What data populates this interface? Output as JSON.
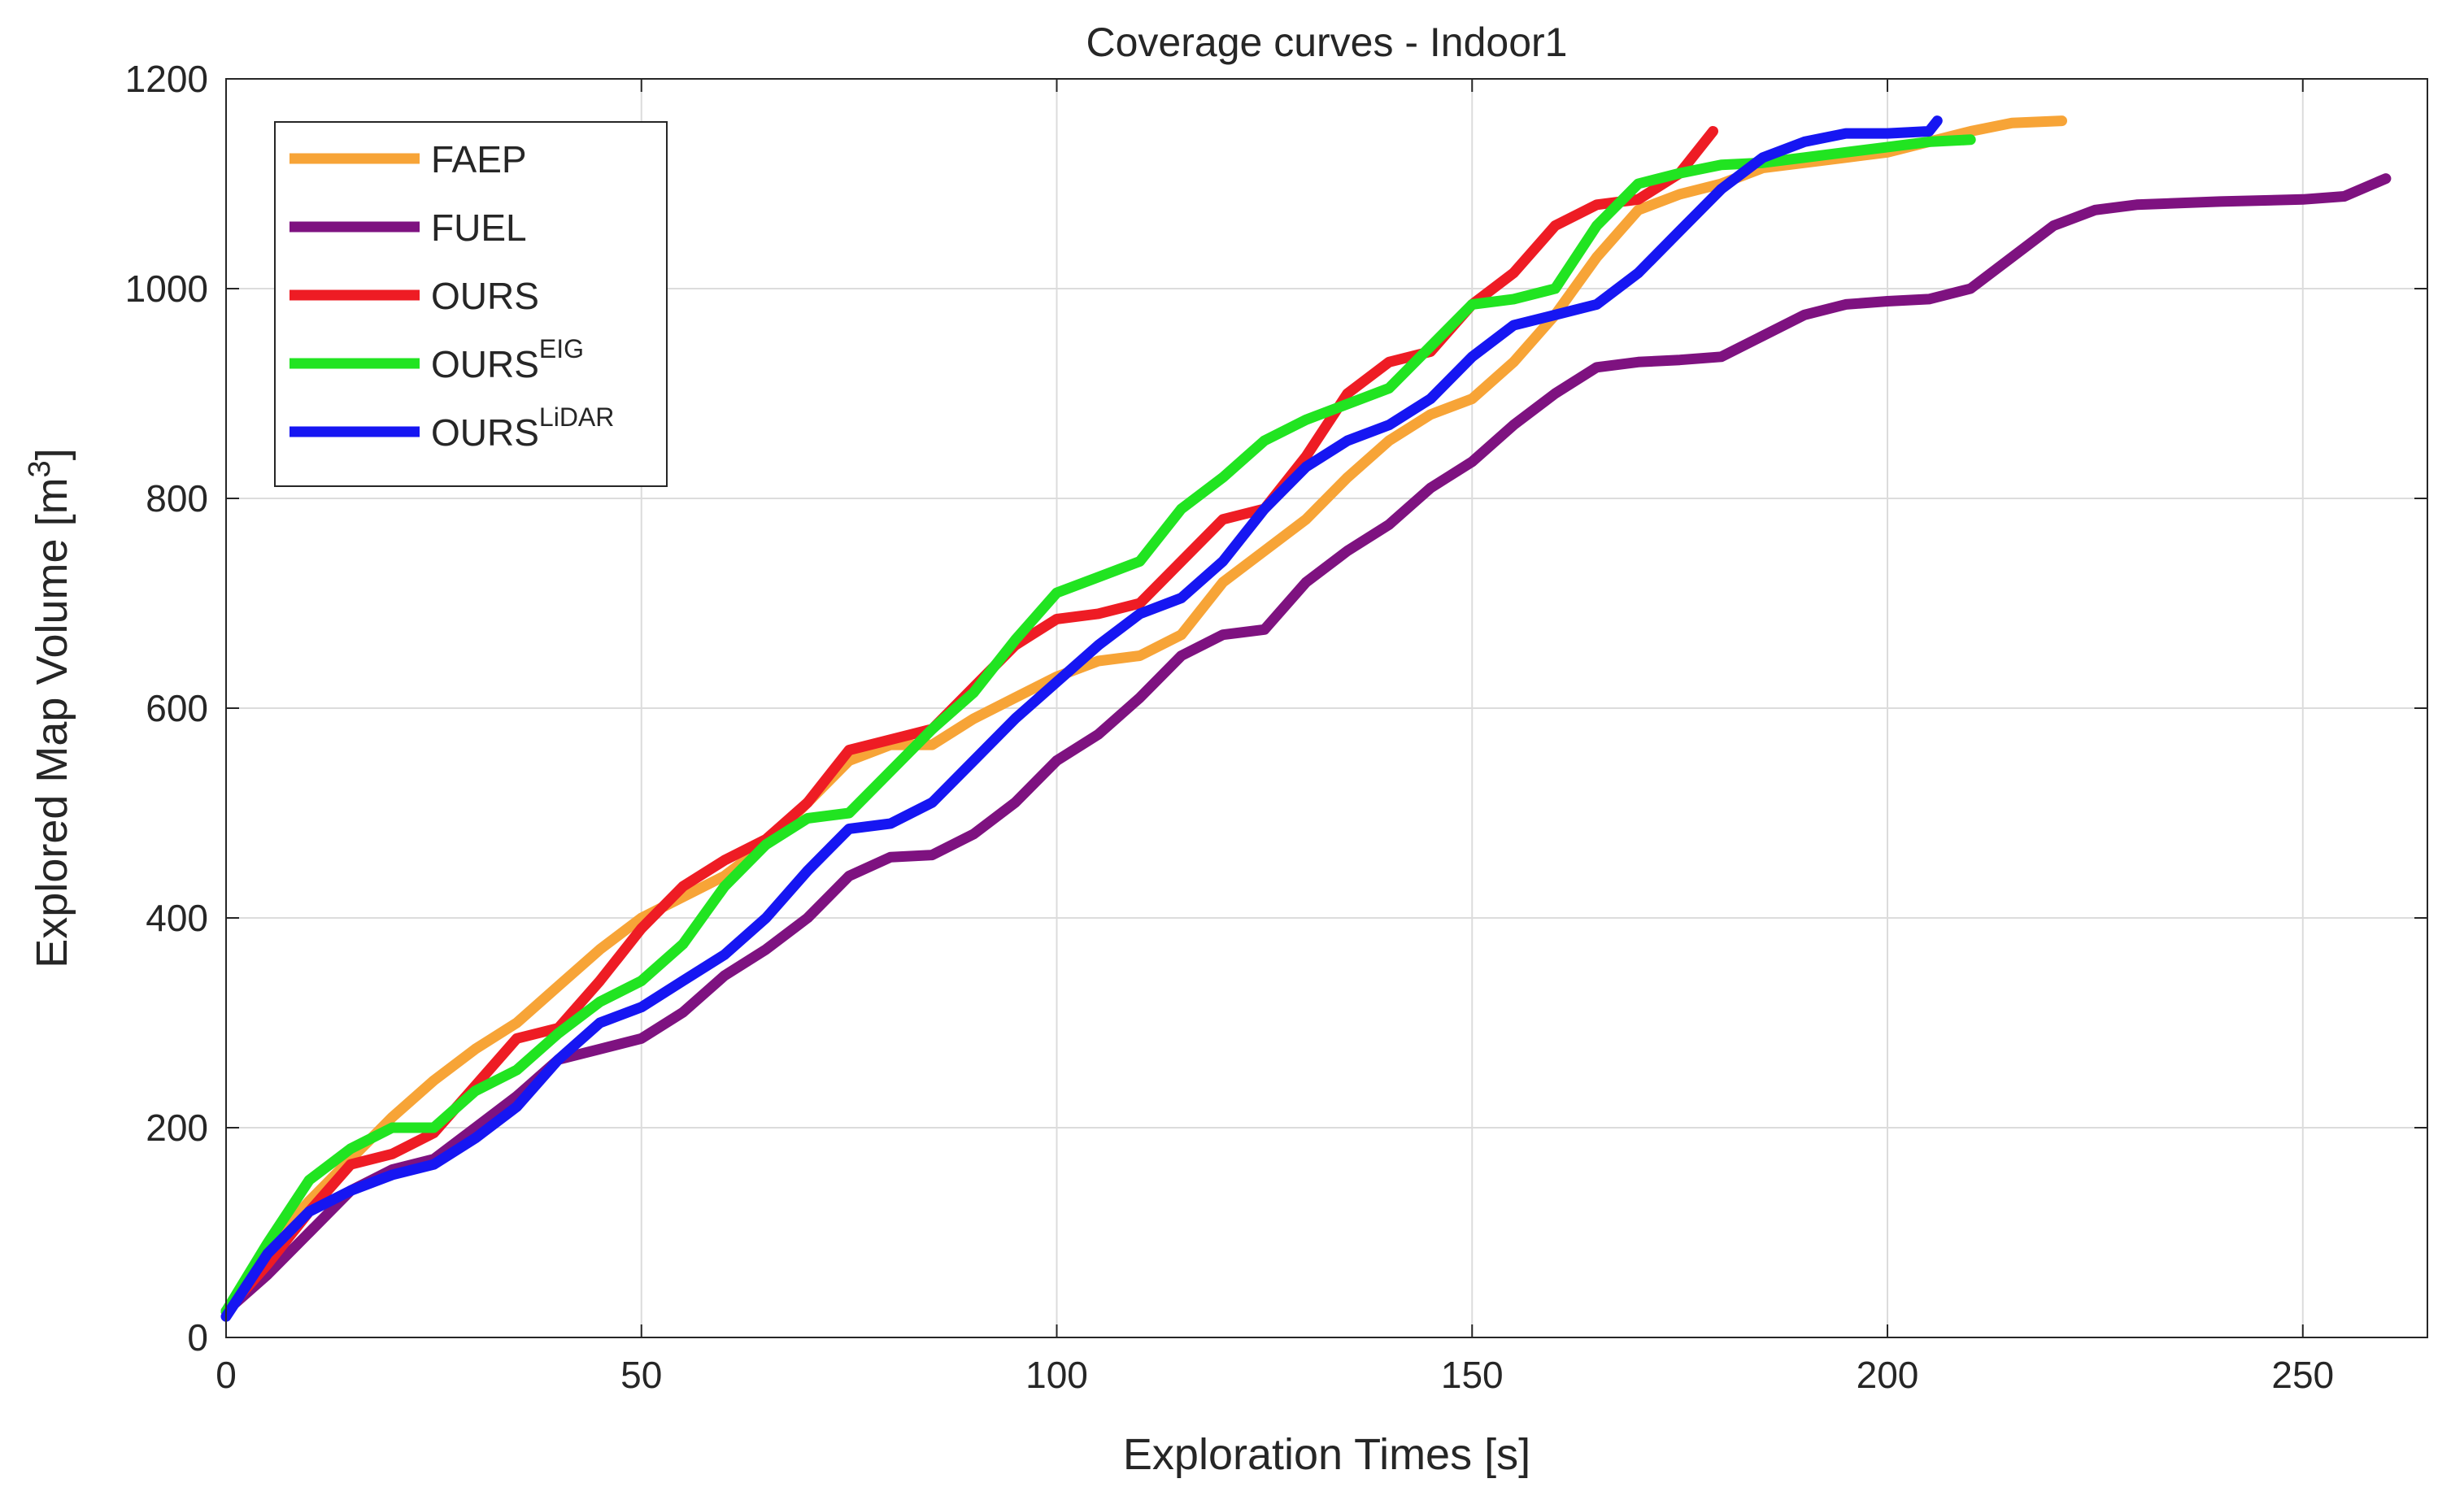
{
  "chart_data": {
    "type": "line",
    "title": "Coverage curves - Indoor1",
    "xlabel": "Exploration Times [s]",
    "ylabel": "Explored Map Volume [m",
    "ylabel_superscript": "3",
    "ylabel_close": "]",
    "xlim": [
      0,
      265
    ],
    "ylim": [
      0,
      1200
    ],
    "xticks": [
      0,
      50,
      100,
      150,
      200,
      250
    ],
    "yticks": [
      0,
      200,
      400,
      600,
      800,
      1000,
      1200
    ],
    "grid": true,
    "legend_position": "top-left",
    "series": [
      {
        "name": "FAEP",
        "superscript": "",
        "color": "#f7a437",
        "x": [
          0,
          5,
          10,
          15,
          20,
          25,
          30,
          35,
          40,
          45,
          50,
          55,
          60,
          65,
          70,
          75,
          80,
          85,
          90,
          95,
          100,
          105,
          110,
          115,
          120,
          125,
          130,
          135,
          140,
          145,
          150,
          155,
          160,
          165,
          170,
          175,
          180,
          185,
          190,
          195,
          200,
          205,
          210,
          215,
          221
        ],
        "y": [
          25,
          85,
          130,
          170,
          210,
          245,
          275,
          300,
          335,
          370,
          400,
          420,
          440,
          470,
          510,
          550,
          565,
          565,
          590,
          610,
          630,
          645,
          650,
          670,
          720,
          750,
          780,
          820,
          855,
          880,
          895,
          930,
          975,
          1030,
          1075,
          1090,
          1100,
          1115,
          1120,
          1125,
          1130,
          1140,
          1150,
          1158,
          1160
        ]
      },
      {
        "name": "FUEL",
        "superscript": "",
        "color": "#7e1280",
        "x": [
          0,
          5,
          10,
          15,
          20,
          25,
          30,
          35,
          40,
          45,
          50,
          55,
          60,
          65,
          70,
          75,
          80,
          85,
          90,
          95,
          100,
          105,
          110,
          115,
          120,
          125,
          130,
          135,
          140,
          145,
          150,
          155,
          160,
          165,
          170,
          175,
          180,
          185,
          190,
          195,
          200,
          205,
          210,
          215,
          220,
          225,
          230,
          240,
          250,
          255,
          260
        ],
        "y": [
          25,
          60,
          100,
          140,
          160,
          170,
          200,
          230,
          265,
          275,
          285,
          310,
          345,
          370,
          400,
          440,
          458,
          460,
          480,
          510,
          550,
          575,
          610,
          650,
          670,
          675,
          720,
          750,
          775,
          810,
          835,
          870,
          900,
          925,
          930,
          932,
          935,
          955,
          975,
          985,
          988,
          990,
          1000,
          1030,
          1060,
          1075,
          1080,
          1083,
          1085,
          1088,
          1105
        ]
      },
      {
        "name": "OURS",
        "superscript": "",
        "color": "#ee1c24",
        "x": [
          0,
          5,
          10,
          15,
          20,
          25,
          30,
          35,
          40,
          45,
          50,
          55,
          60,
          65,
          70,
          75,
          80,
          85,
          90,
          95,
          100,
          105,
          110,
          115,
          120,
          125,
          130,
          135,
          140,
          145,
          150,
          155,
          160,
          165,
          170,
          175,
          179
        ],
        "y": [
          25,
          70,
          120,
          165,
          175,
          195,
          240,
          285,
          295,
          340,
          390,
          430,
          455,
          475,
          510,
          560,
          570,
          580,
          620,
          660,
          685,
          690,
          700,
          740,
          780,
          790,
          840,
          900,
          930,
          940,
          985,
          1015,
          1060,
          1080,
          1085,
          1110,
          1150
        ]
      },
      {
        "name": "OURS",
        "superscript": "EIG",
        "color": "#21e421",
        "x": [
          0,
          5,
          10,
          15,
          20,
          25,
          30,
          35,
          40,
          45,
          50,
          55,
          60,
          65,
          70,
          75,
          80,
          85,
          90,
          95,
          100,
          105,
          110,
          115,
          120,
          125,
          130,
          135,
          140,
          145,
          150,
          155,
          160,
          165,
          170,
          175,
          180,
          185,
          190,
          195,
          200,
          205,
          210
        ],
        "y": [
          25,
          90,
          150,
          180,
          200,
          200,
          235,
          255,
          290,
          320,
          340,
          375,
          430,
          470,
          495,
          500,
          540,
          580,
          615,
          665,
          710,
          725,
          740,
          790,
          820,
          855,
          875,
          890,
          905,
          945,
          985,
          990,
          1000,
          1060,
          1100,
          1110,
          1118,
          1120,
          1125,
          1130,
          1135,
          1140,
          1142
        ]
      },
      {
        "name": "OURS",
        "superscript": "LiDAR",
        "color": "#1616f2",
        "x": [
          0,
          5,
          10,
          15,
          20,
          25,
          30,
          35,
          40,
          45,
          50,
          55,
          60,
          65,
          70,
          75,
          80,
          85,
          90,
          95,
          100,
          105,
          110,
          115,
          120,
          125,
          130,
          135,
          140,
          145,
          150,
          155,
          160,
          165,
          170,
          175,
          180,
          185,
          190,
          195,
          200,
          205,
          206
        ],
        "y": [
          20,
          80,
          120,
          140,
          155,
          165,
          190,
          220,
          265,
          300,
          315,
          340,
          365,
          400,
          445,
          485,
          490,
          510,
          550,
          590,
          625,
          660,
          690,
          705,
          740,
          790,
          830,
          855,
          870,
          895,
          935,
          965,
          975,
          985,
          1015,
          1055,
          1095,
          1125,
          1140,
          1148,
          1148,
          1150,
          1160
        ]
      }
    ]
  }
}
